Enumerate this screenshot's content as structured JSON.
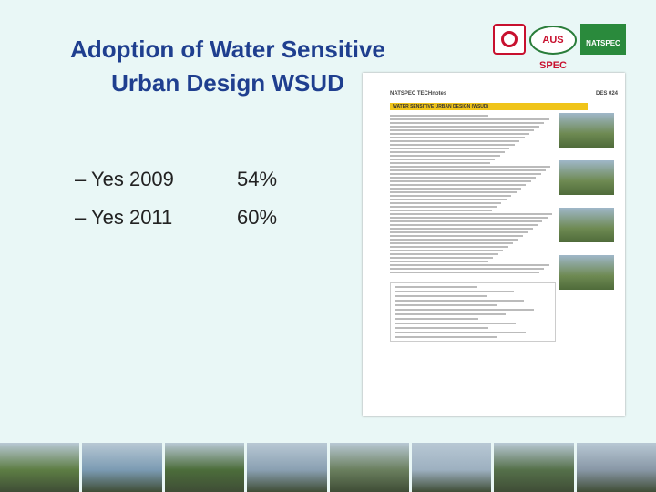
{
  "title": {
    "line1": "Adoption of Water Sensitive",
    "line2": "Urban Design WSUD"
  },
  "bullets": [
    {
      "label": "– Yes 2009",
      "value": "54%"
    },
    {
      "label": "– Yes 2011",
      "value": "60%"
    }
  ],
  "logos": {
    "aus_spec": "AUS SPEC",
    "natspec": "NATSPEC"
  },
  "document": {
    "header_left": "NATSPEC TECHnotes",
    "header_right": "DES 024",
    "band_title": "WATER SENSITIVE URBAN DESIGN (WSUD)"
  },
  "photo_colors": [
    "#5d7d44",
    "#7b9bb3",
    "#4c6d3b",
    "#8aa0b2",
    "#6a7f5e",
    "#9db0c0",
    "#55704a",
    "#8897a6"
  ]
}
